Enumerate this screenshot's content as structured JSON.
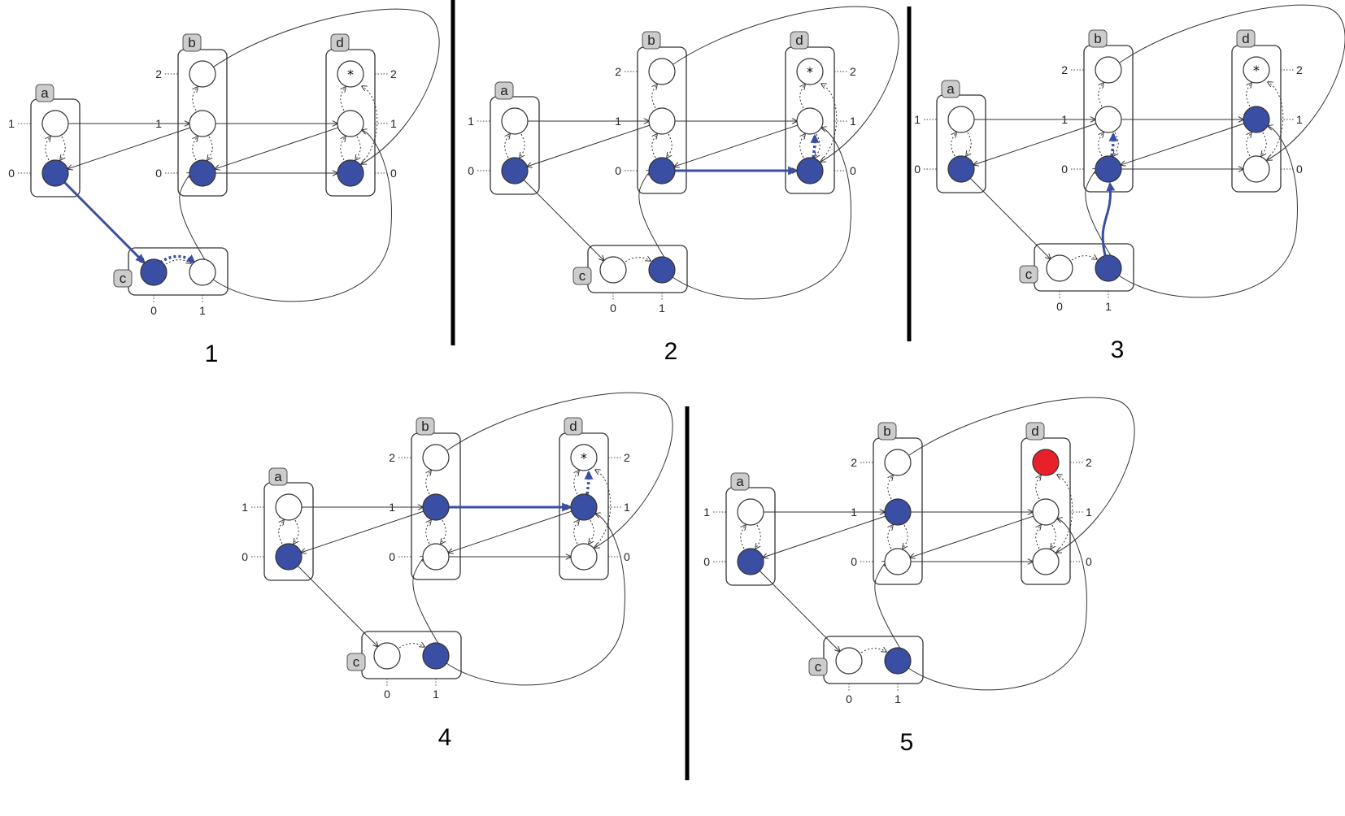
{
  "panels": [
    {
      "label": "1",
      "active": {
        "a": 0,
        "b": 0,
        "c": 0,
        "d": 0
      },
      "target_highlighted": false,
      "highlight": [
        {
          "kind": "solid",
          "from": "a0",
          "to": "c0"
        },
        {
          "kind": "dotted",
          "from": "c0",
          "to": "c1"
        }
      ]
    },
    {
      "label": "2",
      "active": {
        "a": 0,
        "b": 0,
        "c": 1,
        "d": 0
      },
      "target_highlighted": false,
      "highlight": [
        {
          "kind": "solid",
          "from": "b0",
          "to": "d0"
        },
        {
          "kind": "dotted",
          "from": "d0",
          "to": "d1"
        }
      ]
    },
    {
      "label": "3",
      "active": {
        "a": 0,
        "b": 0,
        "c": 1,
        "d": 1
      },
      "target_highlighted": false,
      "highlight": [
        {
          "kind": "solid",
          "from": "c1",
          "to": "b0"
        },
        {
          "kind": "dotted",
          "from": "b0",
          "to": "b1"
        }
      ]
    },
    {
      "label": "4",
      "active": {
        "a": 0,
        "b": 1,
        "c": 1,
        "d": 1
      },
      "target_highlighted": false,
      "highlight": [
        {
          "kind": "solid",
          "from": "b1",
          "to": "d1"
        },
        {
          "kind": "dotted",
          "from": "d1",
          "to": "d2"
        }
      ]
    },
    {
      "label": "5",
      "active": {
        "a": 0,
        "b": 1,
        "c": 1,
        "d": 2
      },
      "target_highlighted": true,
      "highlight": []
    }
  ],
  "components": {
    "a": {
      "tag": "a",
      "levels": [
        "0",
        "1"
      ]
    },
    "b": {
      "tag": "b",
      "levels": [
        "0",
        "1",
        "2"
      ]
    },
    "c": {
      "tag": "c",
      "levels": [
        "0",
        "1"
      ]
    },
    "d": {
      "tag": "d",
      "levels": [
        "0",
        "1",
        "2"
      ]
    }
  },
  "target_symbol": "*",
  "colors": {
    "active_node": "#3a4fa3",
    "inactive_node": "#ffffff",
    "reached_target": "#e8202a",
    "highlight": "#3a4fa3",
    "separator": "#000000"
  }
}
